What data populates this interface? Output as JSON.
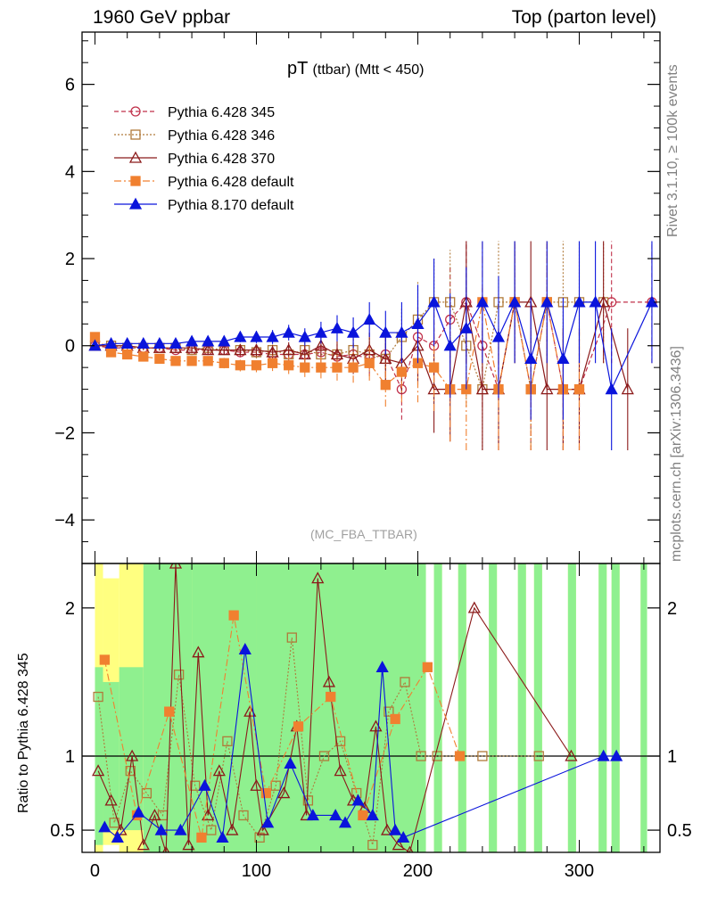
{
  "header": {
    "left": "1960 GeV ppbar",
    "right": "Top (parton level)"
  },
  "side_labels": {
    "rivet": "Rivet 3.1.10, ≥ 100k events",
    "mcplots": "mcplots.cern.ch [arXiv:1306.3436]"
  },
  "chart_data": [
    {
      "type": "scatter",
      "title_main": "pT",
      "title_sub": "(ttbar) (Mtt < 450)",
      "watermark": "(MC_FBA_TTBAR)",
      "xlim": [
        -8,
        350
      ],
      "ylim": [
        -5,
        7.2
      ],
      "yticks": [
        -4,
        -2,
        0,
        2,
        4,
        6
      ],
      "yticklabels": [
        "−4",
        "−2",
        "0",
        "2",
        "4",
        "6"
      ],
      "legend_position": "top-left",
      "series": [
        {
          "name": "Pythia 6.428 345",
          "color": "#c0304a",
          "marker": "circle-open",
          "dash": "5,3",
          "x": [
            0,
            10,
            20,
            30,
            40,
            50,
            60,
            70,
            80,
            90,
            100,
            110,
            120,
            130,
            140,
            150,
            160,
            170,
            180,
            190,
            200,
            210,
            220,
            230,
            240,
            250,
            260,
            270,
            280,
            290,
            300,
            320,
            345
          ],
          "y": [
            0.0,
            -0.05,
            -0.05,
            -0.05,
            -0.05,
            -0.1,
            -0.1,
            -0.1,
            -0.1,
            -0.15,
            -0.15,
            -0.2,
            -0.2,
            -0.2,
            -0.15,
            -0.25,
            -0.2,
            -0.3,
            -0.2,
            -1.0,
            0.2,
            0.0,
            0.6,
            1.0,
            0.0,
            -1.0,
            1.0,
            -1.0,
            1.0,
            -1.0,
            -1.0,
            1.0,
            1.0
          ],
          "err": [
            0.03,
            0.03,
            0.04,
            0.05,
            0.06,
            0.07,
            0.08,
            0.09,
            0.1,
            0.12,
            0.14,
            0.16,
            0.18,
            0.2,
            0.25,
            0.3,
            0.35,
            0.4,
            0.5,
            0.7,
            0.9,
            1.0,
            1.2,
            1.4,
            1.4,
            1.4,
            1.4,
            1.4,
            1.4,
            1.4,
            1.4,
            1.4,
            1.4
          ]
        },
        {
          "name": "Pythia 6.428 346",
          "color": "#b07a3a",
          "marker": "square-open",
          "dash": "2,2",
          "x": [
            0,
            10,
            20,
            30,
            40,
            50,
            60,
            70,
            80,
            90,
            100,
            110,
            120,
            130,
            140,
            150,
            160,
            170,
            180,
            190,
            200,
            210,
            220,
            230,
            240,
            250,
            260,
            270,
            280,
            290,
            300,
            315
          ],
          "y": [
            0.0,
            0.0,
            -0.05,
            -0.05,
            -0.05,
            -0.05,
            -0.1,
            -0.05,
            -0.1,
            -0.1,
            -0.15,
            -0.1,
            -0.2,
            -0.1,
            -0.2,
            -0.2,
            -0.1,
            -0.2,
            -0.3,
            0.2,
            0.6,
            1.0,
            1.0,
            0.0,
            -1.0,
            1.0,
            1.0,
            -1.0,
            1.0,
            1.0,
            1.0,
            1.0
          ],
          "err": [
            0.03,
            0.03,
            0.04,
            0.05,
            0.06,
            0.07,
            0.08,
            0.09,
            0.1,
            0.12,
            0.14,
            0.16,
            0.18,
            0.2,
            0.25,
            0.3,
            0.35,
            0.4,
            0.5,
            0.7,
            0.9,
            1.0,
            1.2,
            1.4,
            1.4,
            1.4,
            1.4,
            1.4,
            1.4,
            1.4,
            1.4,
            1.4
          ]
        },
        {
          "name": "Pythia 6.428 370",
          "color": "#8b1a1a",
          "marker": "triangle-open",
          "dash": "",
          "x": [
            0,
            10,
            20,
            30,
            40,
            50,
            60,
            70,
            80,
            90,
            100,
            110,
            120,
            130,
            140,
            150,
            160,
            170,
            180,
            190,
            200,
            210,
            220,
            230,
            240,
            250,
            260,
            270,
            280,
            290,
            300,
            315,
            330
          ],
          "y": [
            0.0,
            0.0,
            0.0,
            -0.05,
            -0.05,
            -0.05,
            -0.05,
            -0.1,
            -0.1,
            -0.1,
            -0.1,
            -0.15,
            -0.1,
            -0.2,
            0.0,
            -0.2,
            -0.3,
            -0.1,
            -0.3,
            -0.4,
            0.0,
            -1.0,
            -1.0,
            1.0,
            -1.0,
            -1.0,
            1.0,
            1.0,
            -1.0,
            -1.0,
            -1.0,
            1.0,
            -1.0
          ],
          "err": [
            0.03,
            0.03,
            0.04,
            0.05,
            0.06,
            0.07,
            0.08,
            0.09,
            0.1,
            0.12,
            0.14,
            0.16,
            0.18,
            0.2,
            0.25,
            0.3,
            0.35,
            0.4,
            0.5,
            0.7,
            0.9,
            1.0,
            1.2,
            1.4,
            1.4,
            1.4,
            1.4,
            1.4,
            1.4,
            1.4,
            1.4,
            1.4,
            1.4
          ]
        },
        {
          "name": "Pythia 6.428 default",
          "color": "#f08030",
          "marker": "square-filled",
          "dash": "8,3,2,3",
          "x": [
            0,
            10,
            20,
            30,
            40,
            50,
            60,
            70,
            80,
            90,
            100,
            110,
            120,
            130,
            140,
            150,
            160,
            170,
            180,
            190,
            200,
            210,
            220,
            230,
            240,
            250,
            260,
            270,
            280,
            290,
            300
          ],
          "y": [
            0.2,
            -0.15,
            -0.2,
            -0.25,
            -0.3,
            -0.35,
            -0.35,
            -0.35,
            -0.4,
            -0.45,
            -0.45,
            -0.4,
            -0.45,
            -0.5,
            -0.5,
            -0.5,
            -0.5,
            -0.4,
            -0.9,
            -0.6,
            -0.4,
            -0.5,
            -1.0,
            -1.0,
            1.0,
            -1.0,
            1.0,
            -1.0,
            1.0,
            -1.0,
            -1.0
          ],
          "err": [
            0.04,
            0.04,
            0.05,
            0.06,
            0.07,
            0.08,
            0.09,
            0.1,
            0.12,
            0.14,
            0.16,
            0.18,
            0.2,
            0.22,
            0.25,
            0.3,
            0.35,
            0.4,
            0.5,
            0.7,
            0.9,
            1.0,
            1.2,
            1.4,
            1.4,
            1.4,
            1.4,
            1.4,
            1.4,
            1.4,
            1.4
          ]
        },
        {
          "name": "Pythia 8.170 default",
          "color": "#0a14dc",
          "marker": "triangle-filled",
          "dash": "",
          "x": [
            0,
            10,
            20,
            30,
            40,
            50,
            60,
            70,
            80,
            90,
            100,
            110,
            120,
            130,
            140,
            150,
            160,
            170,
            180,
            190,
            200,
            210,
            220,
            230,
            240,
            250,
            260,
            270,
            280,
            290,
            300,
            310,
            320,
            345
          ],
          "y": [
            0.0,
            0.05,
            0.05,
            0.05,
            0.05,
            0.05,
            0.1,
            0.1,
            0.1,
            0.2,
            0.2,
            0.2,
            0.3,
            0.2,
            0.3,
            0.4,
            0.3,
            0.6,
            0.3,
            0.3,
            0.5,
            1.0,
            0.0,
            0.4,
            1.0,
            0.2,
            1.0,
            -0.3,
            1.0,
            -0.3,
            1.0,
            1.0,
            -1.0,
            1.0
          ],
          "err": [
            0.03,
            0.03,
            0.04,
            0.05,
            0.06,
            0.07,
            0.08,
            0.09,
            0.1,
            0.12,
            0.14,
            0.16,
            0.18,
            0.2,
            0.25,
            0.3,
            0.35,
            0.4,
            0.5,
            0.7,
            0.9,
            1.0,
            1.2,
            1.4,
            1.4,
            1.4,
            1.4,
            1.4,
            1.4,
            1.4,
            1.4,
            1.4,
            1.4,
            1.4
          ]
        }
      ]
    },
    {
      "type": "scatter",
      "ylabel": "Ratio to Pythia 6.428 345",
      "xlim": [
        -8,
        350
      ],
      "ylim": [
        0.35,
        2.3
      ],
      "xticks": [
        0,
        100,
        200,
        300
      ],
      "yticks": [
        0.5,
        1,
        2
      ],
      "yticklabels": [
        "0.5",
        "1",
        "2"
      ],
      "reference_line": 1,
      "band_colors": {
        "inner": "#8ff08f",
        "outer": "#ffff80"
      },
      "bands": [
        {
          "x0": 0,
          "x1": 5,
          "inner": [
            0.4,
            1.6
          ],
          "outer": [
            0.35,
            2.3
          ]
        },
        {
          "x0": 5,
          "x1": 15,
          "inner": [
            0.5,
            1.5
          ],
          "outer": [
            0.4,
            2.2
          ]
        },
        {
          "x0": 15,
          "x1": 30,
          "inner": [
            0.5,
            1.6
          ],
          "outer": [
            0.35,
            2.3
          ]
        },
        {
          "x0": 30,
          "x1": 60,
          "inner": [
            0.35,
            2.3
          ],
          "outer": [
            0.35,
            2.3
          ]
        },
        {
          "x0": 60,
          "x1": 100,
          "inner": [
            0.35,
            2.3
          ],
          "outer": [
            0.35,
            2.3
          ]
        },
        {
          "x0": 100,
          "x1": 150,
          "inner": [
            0.35,
            2.3
          ],
          "outer": [
            0.35,
            2.3
          ]
        },
        {
          "x0": 150,
          "x1": 200,
          "inner": [
            0.35,
            2.3
          ],
          "outer": [
            0.35,
            2.3
          ]
        },
        {
          "x0": 200,
          "x1": 205,
          "inner": [
            0.35,
            2.3
          ],
          "outer": [
            0.35,
            2.3
          ]
        },
        {
          "x0": 210,
          "x1": 215,
          "inner": [
            0.35,
            2.3
          ],
          "outer": [
            0.35,
            2.3
          ]
        },
        {
          "x0": 225,
          "x1": 230,
          "inner": [
            0.35,
            2.3
          ],
          "outer": [
            0.35,
            2.3
          ]
        },
        {
          "x0": 244,
          "x1": 249,
          "inner": [
            0.35,
            2.3
          ],
          "outer": [
            0.35,
            2.3
          ]
        },
        {
          "x0": 262,
          "x1": 267,
          "inner": [
            0.35,
            2.3
          ],
          "outer": [
            0.35,
            2.3
          ]
        },
        {
          "x0": 272,
          "x1": 277,
          "inner": [
            0.35,
            2.3
          ],
          "outer": [
            0.35,
            2.3
          ]
        },
        {
          "x0": 293,
          "x1": 298,
          "inner": [
            0.35,
            2.3
          ],
          "outer": [
            0.35,
            2.3
          ]
        },
        {
          "x0": 312,
          "x1": 317,
          "inner": [
            0.35,
            2.3
          ],
          "outer": [
            0.35,
            2.3
          ]
        },
        {
          "x0": 320,
          "x1": 325,
          "inner": [
            0.35,
            2.3
          ],
          "outer": [
            0.35,
            2.3
          ]
        },
        {
          "x0": 338,
          "x1": 342,
          "inner": [
            0.35,
            2.3
          ],
          "outer": [
            0.35,
            2.3
          ]
        }
      ],
      "series": [
        {
          "name": "Pythia 6.428 346",
          "color": "#b07a3a",
          "marker": "square-open",
          "dash": "2,2",
          "x": [
            2,
            12,
            22,
            32,
            42,
            52,
            62,
            72,
            82,
            92,
            102,
            112,
            122,
            132,
            142,
            152,
            162,
            172,
            182,
            192,
            202,
            212,
            240,
            275
          ],
          "y": [
            1.4,
            0.55,
            0.9,
            0.75,
            0.6,
            1.55,
            0.8,
            0.5,
            1.1,
            0.6,
            0.45,
            0.8,
            1.8,
            0.7,
            1.0,
            1.1,
            0.75,
            0.4,
            1.3,
            1.5,
            1.0,
            1.0,
            1.0,
            1.0
          ]
        },
        {
          "name": "Pythia 6.428 370",
          "color": "#8b1a1a",
          "marker": "triangle-open",
          "dash": "",
          "x": [
            2,
            10,
            16,
            23,
            30,
            37,
            44,
            50,
            58,
            64,
            70,
            77,
            85,
            96,
            100,
            104,
            117,
            125,
            131,
            138,
            145,
            152,
            160,
            167,
            174,
            181,
            188,
            195,
            235,
            295
          ],
          "y": [
            0.9,
            0.7,
            0.5,
            1.0,
            0.4,
            0.6,
            0.35,
            2.3,
            0.4,
            1.7,
            0.6,
            0.9,
            0.5,
            1.3,
            0.8,
            0.5,
            0.75,
            1.2,
            0.6,
            2.2,
            1.5,
            0.9,
            0.7,
            0.65,
            1.2,
            0.5,
            0.4,
            0.35,
            2.0,
            1.0
          ]
        },
        {
          "name": "Pythia 6.428 default",
          "color": "#f08030",
          "marker": "square-filled",
          "dash": "8,3,2,3",
          "x": [
            6,
            26,
            46,
            66,
            86,
            106,
            126,
            146,
            166,
            186,
            206,
            226
          ],
          "y": [
            1.65,
            0.6,
            1.3,
            0.45,
            1.95,
            0.75,
            1.2,
            1.4,
            0.6,
            1.25,
            1.6,
            1.0
          ]
        },
        {
          "name": "Pythia 8.170 default",
          "color": "#0a14dc",
          "marker": "triangle-filled",
          "dash": "",
          "x": [
            6,
            14,
            27,
            41,
            53,
            68,
            79,
            93,
            107,
            121,
            135,
            149,
            155,
            163,
            172,
            178,
            186,
            191,
            315,
            323
          ],
          "y": [
            0.52,
            0.45,
            0.62,
            0.5,
            0.5,
            0.8,
            0.45,
            1.72,
            0.55,
            0.95,
            0.6,
            0.6,
            0.55,
            0.7,
            0.6,
            1.6,
            0.5,
            0.45,
            1.0,
            1.0
          ]
        }
      ]
    }
  ]
}
